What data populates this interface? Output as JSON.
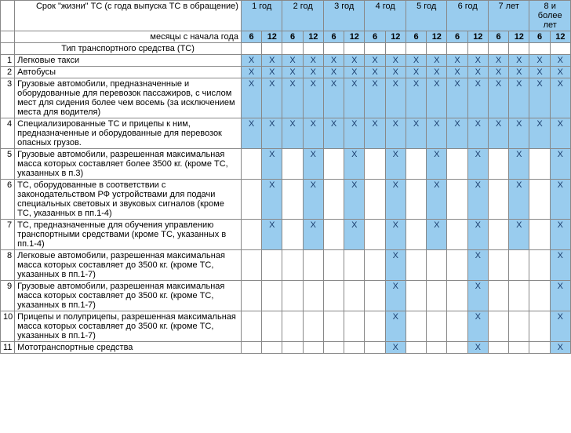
{
  "header": {
    "life_label": "Срок \"жизни\" ТС (с года выпуска ТС в обращение)",
    "months_label": "месяцы с начала года",
    "type_label": "Тип транспортного средства (ТС)",
    "years": [
      "1 год",
      "2 год",
      "3 год",
      "4 год",
      "5 год",
      "6 год",
      "7 лет",
      "8 и более лет"
    ],
    "months": [
      "6",
      "12"
    ]
  },
  "mark_symbol": "X",
  "colors": {
    "header_bg": "#99ccee",
    "mark_bg": "#99ccee",
    "mark_fg": "#1a3d6d",
    "border": "#888888"
  },
  "rows": [
    {
      "n": "1",
      "text": "Легковые такси",
      "cells": [
        1,
        1,
        1,
        1,
        1,
        1,
        1,
        1,
        1,
        1,
        1,
        1,
        1,
        1,
        1,
        1
      ]
    },
    {
      "n": "2",
      "text": "Автобусы",
      "cells": [
        1,
        1,
        1,
        1,
        1,
        1,
        1,
        1,
        1,
        1,
        1,
        1,
        1,
        1,
        1,
        1
      ]
    },
    {
      "n": "3",
      "text": "Грузовые автомобили, предназначенные и оборудованные для перевозок пассажиров, с числом мест для сидения более чем восемь (за исключением места для водителя)",
      "cells": [
        1,
        1,
        1,
        1,
        1,
        1,
        1,
        1,
        1,
        1,
        1,
        1,
        1,
        1,
        1,
        1
      ]
    },
    {
      "n": "4",
      "text": "Специализированные ТС и прицепы к ним, предназначенные и оборудованные для перевозок опасных грузов.",
      "cells": [
        1,
        1,
        1,
        1,
        1,
        1,
        1,
        1,
        1,
        1,
        1,
        1,
        1,
        1,
        1,
        1
      ]
    },
    {
      "n": "5",
      "text": "Грузовые автомобили, разрешенная максимальная масса которых составляет более 3500 кг. (кроме ТС, указанных в п.3)",
      "cells": [
        0,
        1,
        0,
        1,
        0,
        1,
        0,
        1,
        0,
        1,
        0,
        1,
        0,
        1,
        0,
        1
      ]
    },
    {
      "n": "6",
      "text": "ТС, оборудованные в соответствии с законодательством РФ устройствами для подачи специальных световых и звуковых сигналов (кроме ТС, указанных в пп.1-4)",
      "cells": [
        0,
        1,
        0,
        1,
        0,
        1,
        0,
        1,
        0,
        1,
        0,
        1,
        0,
        1,
        0,
        1
      ]
    },
    {
      "n": "7",
      "text": "ТС, предназначенные для обучения управлению транспортными средствами (кроме ТС, указанных в пп.1-4)",
      "cells": [
        0,
        1,
        0,
        1,
        0,
        1,
        0,
        1,
        0,
        1,
        0,
        1,
        0,
        1,
        0,
        1
      ]
    },
    {
      "n": "8",
      "text": "Легковые автомобили, разрешенная максимальная масса которых составляет до 3500 кг. (кроме ТС, указанных в пп.1-7)",
      "cells": [
        0,
        0,
        0,
        0,
        0,
        0,
        0,
        1,
        0,
        0,
        0,
        1,
        0,
        0,
        0,
        1
      ]
    },
    {
      "n": "9",
      "text": "Грузовые автомобили, разрешенная максимальная масса которых составляет до 3500 кг. (кроме ТС, указанных в пп.1-7)",
      "cells": [
        0,
        0,
        0,
        0,
        0,
        0,
        0,
        1,
        0,
        0,
        0,
        1,
        0,
        0,
        0,
        1
      ]
    },
    {
      "n": "10",
      "text": "Прицепы и полуприцепы, разрешенная максимальная масса которых составляет до 3500 кг. (кроме ТС, указанных в пп.1-7)",
      "cells": [
        0,
        0,
        0,
        0,
        0,
        0,
        0,
        1,
        0,
        0,
        0,
        1,
        0,
        0,
        0,
        1
      ]
    },
    {
      "n": "11",
      "text": "Мототранспортные средства",
      "cells": [
        0,
        0,
        0,
        0,
        0,
        0,
        0,
        1,
        0,
        0,
        0,
        1,
        0,
        0,
        0,
        1
      ]
    }
  ]
}
